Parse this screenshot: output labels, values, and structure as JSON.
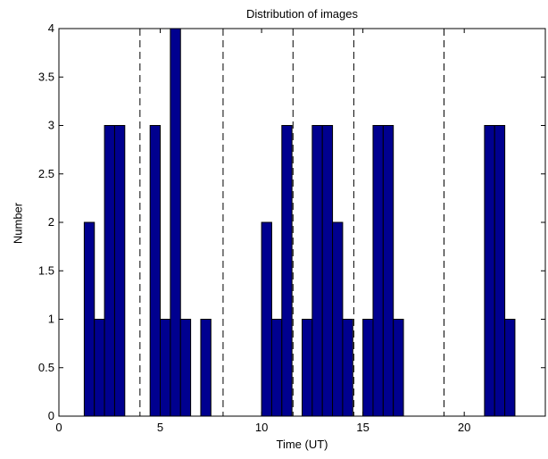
{
  "chart_data": {
    "type": "bar",
    "title": "Distribution of images",
    "xlabel": "Time (UT)",
    "ylabel": "Number",
    "xlim": [
      0,
      24
    ],
    "ylim": [
      0,
      4
    ],
    "bin_width": 0.5,
    "xticks": [
      "0",
      "5",
      "10",
      "15",
      "20"
    ],
    "yticks": [
      "0",
      "0.5",
      "1",
      "1.5",
      "2",
      "2.5",
      "3",
      "3.5",
      "4"
    ],
    "bins": [
      {
        "x": 1.5,
        "value": 2
      },
      {
        "x": 2.0,
        "value": 1
      },
      {
        "x": 2.5,
        "value": 3
      },
      {
        "x": 3.0,
        "value": 3
      },
      {
        "x": 4.75,
        "value": 3
      },
      {
        "x": 5.25,
        "value": 1
      },
      {
        "x": 5.75,
        "value": 4
      },
      {
        "x": 6.25,
        "value": 1
      },
      {
        "x": 7.25,
        "value": 1
      },
      {
        "x": 10.25,
        "value": 2
      },
      {
        "x": 10.75,
        "value": 1
      },
      {
        "x": 11.25,
        "value": 3
      },
      {
        "x": 12.25,
        "value": 1
      },
      {
        "x": 12.75,
        "value": 3
      },
      {
        "x": 13.25,
        "value": 3
      },
      {
        "x": 13.75,
        "value": 2
      },
      {
        "x": 14.25,
        "value": 1
      },
      {
        "x": 15.25,
        "value": 1
      },
      {
        "x": 15.75,
        "value": 3
      },
      {
        "x": 16.25,
        "value": 3
      },
      {
        "x": 16.75,
        "value": 1
      },
      {
        "x": 21.25,
        "value": 3
      },
      {
        "x": 21.75,
        "value": 3
      },
      {
        "x": 22.25,
        "value": 1
      }
    ],
    "vlines": [
      4.0,
      8.1,
      11.55,
      14.55,
      19.0
    ],
    "bar_color": "#00008f",
    "grid": false
  }
}
